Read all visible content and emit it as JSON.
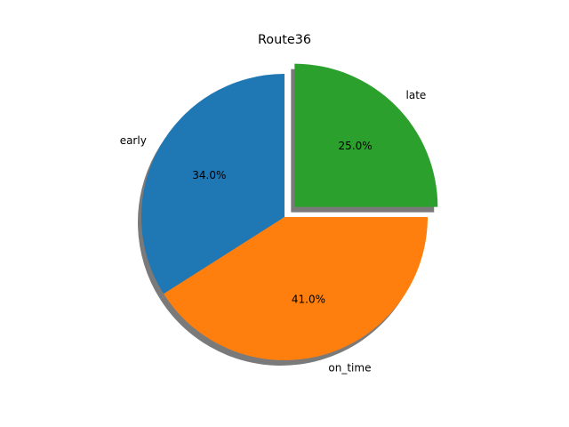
{
  "chart_data": {
    "type": "pie",
    "title": "Route36",
    "slices": [
      {
        "label": "early",
        "value": 34.0,
        "pct_label": "34.0%",
        "color": "#1f77b4",
        "explode": false
      },
      {
        "label": "on_time",
        "value": 41.0,
        "pct_label": "41.0%",
        "color": "#ff7f0e",
        "explode": false
      },
      {
        "label": "late",
        "value": 25.0,
        "pct_label": "25.0%",
        "color": "#2ca02c",
        "explode": true
      }
    ],
    "start_angle_deg": 90,
    "direction": "counterclockwise",
    "shadow": true
  }
}
